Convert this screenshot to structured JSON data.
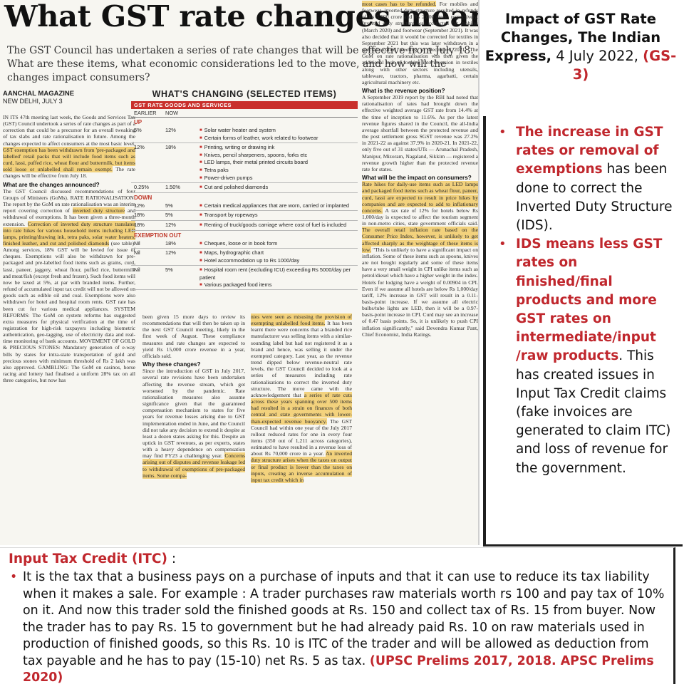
{
  "clipping": {
    "headline": "What GST rate changes mean",
    "standfirst": "The GST Council has undertaken a series of rate changes that will be effective from July 18. What are these items, what economic considerations led to the move, and how will the changes impact consumers?",
    "author": "AANCHAL MAGAZINE",
    "dateline": "NEW DELHI, JULY 3",
    "col1_p1": "IN ITS 47th meeting last week, the Goods and Services Tax (GST) Council undertook a series of rate changes as part of a correction that could be a precursor for an overall tweaking of tax slabs and rate rationalisation in future. Among the changes expected to affect consumers at the most basic level,",
    "col1_hl1": "GST exemption has been withdrawn from 'pre-packaged and labelled' retail packs that will include food items such as curd, lassi, puffed rice, wheat flour and buttermilk, but items sold loose or unlabelled shall remain exempt.",
    "col1_p2": "The rate changes will be effective from July 18.",
    "col1_h1": "What are the changes announced?",
    "col1_p3": "The GST Council discussed recommendations of four Groups of Ministers (GoMs). RATE RATIONALISATION: The report by the GoM on rate rationalisation was an interim report covering correction of",
    "col1_hl2": "inverted duty structure",
    "col1_p4": "and withdrawal of exemptions. It has been given a three-month extension.",
    "col1_hl3": "Correction of inverted duty structure translates into rate hikes for various household items including LED lamps, printing/drawing ink, tetra paks, solar water heaters, finished leather, and cut and polished diamonds",
    "col1_p5": "(see table). Among services, 18% GST will be levied for issue of cheques. Exemptions will also be withdrawn for pre-packaged and pre-labelled food items such as grains, curd, lassi, paneer, jaggery, wheat flour, puffed rice, buttermilk and meat/fish (except fresh and frozen). Such food items will now be taxed at 5%, at par with branded items. Further, refund of accumulated input tax credit will not be allowed on goods such as edible oil and coal. Exemptions were also withdrawn for hotel and hospital room rents. GST rate has been cut for various medical appliances. SYSTEM REFORMS: The GoM on system reforms has suggested extra measures for physical verification at the time of registration for high-risk taxpayers including biometric authentication, geo-tagging, use of electricity data and real-time monitoring of bank accounts. MOVEMENT OF GOLD & PRECIOUS STONES: Mandatory generation of e-way bills by states for intra-state transportation of gold and precious stones with minimum threshold of Rs 2 lakh was also approved. GAMBLING: The GoM on casinos, horse racing and lottery had finalised a uniform 28% tax on all three categories, but now has",
    "col2_p1": "been given 15 more days to review its recommendations that will then be taken up in the next GST Council meeting, likely in the first week of August. These compliance measures and rate changes are expected to yield Rs 15,000 crore revenue in a year, officials said.",
    "col2_h1": "Why these changes?",
    "col2_p2": "Since the introduction of GST in July 2017, several rate revisions have been undertaken affecting the revenue stream, which got worsened by the pandemic. Rate rationalisation measures also assume significance given that the guaranteed compensation mechanism to states for five years for revenue losses arising due to GST implementation ended in June, and the Council did not take any decision to extend it despite at least a dozen states asking for this. Despite an uptick in GST revenues, as per experts, states with a heavy dependence on compensation may find FY23 a challenging year.",
    "col2_hl1": "Concerns arising out of disputes and revenue leakage led to withdrawal of exemptions of pre-packaged items. Some compa-",
    "col3_hl1": "nies were seen as misusing the provision of exempting unlabelled food items.",
    "col3_p1": "It has been learnt there were concerns that a branded rice manufacturer was selling items with a similar-sounding label but had not registered it as a brand and hence, was selling it under the exempted category. Last year, as the revenue trend dipped below revenue-neutral rate levels, the GST Council decided to look at a series of measures including rate rationalisations to correct the inverted duty structure. The move came with the acknowledgement that",
    "col3_hl2": "a series of rate cuts across these years spanning over 500 items had resulted in a strain on finances of both central and state governments with lower-than-expected revenue buoyancy.",
    "col3_p2": "The GST Council had within one year of the July 2017 rollout reduced rates for one in every four items (350 out of 1,211 across categories), estimated to have resulted in a revenue loss of about Rs 70,000 crore in a year.",
    "col3_hl3": "An inverted duty structure arises when the taxes on output or final product is lower than the taxes on inputs, creating an inverse accumulation of input tax credit which in",
    "col4_hl0": "most cases has to be refunded.",
    "col4_p0": "For mobiles and footwear, inverted duty structure resulted in refunds of Rs 5,500 crore and Rs 2,000 crore, respectively. Inverted duty structure was corrected for mobiles (March 2020) and footwear (September 2021). It was also decided that it would be corrected for textiles in September 2021 but this was later withdrawn in a specially-called meeting in December 2021. The GoM on rate rationalisation was then given the additional task of looking into inversion in textiles along with other sectors including utensils, tableware, tractors, pharma, agarbatti, certain agricultural machinery etc.",
    "col4_h1": "What is the revenue position?",
    "col4_p1": "A September 2019 report by the RBI had noted that rationalisation of rates had brought down the effective weighted average GST rate from 14.4% at the time of inception to 11.6%. As per the latest revenue figures shared in the Council, the all-India average shortfall between the protected revenue and the post settlement gross SGST revenue was 27.2% in 2021-22 as against 37.9% in 2020-21. In 2021-22, only five out of 31 states/UTs — Arunachal Pradesh, Manipur, Mizoram, Nagaland, Sikkim — registered a revenue growth higher than the protected revenue rate for states.",
    "col4_h2": "What will be the impact on consumers?",
    "col4_hl1": "Rate hikes for daily-use items such as LED lamps and packaged food items such as wheat flour, paneer, curd, lassi are expected to result in price hikes by companies and are expected to add to inflationary concerns.",
    "col4_p2": "A tax rate of 12% for hotels below Rs 1,000/day is expected to affect the tourism segment in non-metro cities, state government officials said.",
    "col4_hl2": "The overall retail inflation rate based on the Consumer Price Index, however, is unlikely to get affected sharply as the weightage of these items is low.",
    "col4_p3": "\"This is unlikely to have a significant impact on inflation. Some of these items such as spoons, knives are not bought regularly and some of these items have a very small weight in CPI unlike items such as petrol/diesel which have a higher weight in the index. Hotels for lodging have a weight of 0.00904 in CPI. Even if we assume all hotels are below Rs 1,000/day tariff, 12% increase in GST will result in a 0.11-basis-point increase. If we assume all electric bulbs/tube lights are LED, then it will be a 0.97-basis-point increase in CPI. Curd may see an increase of 0.47 basis points. So, it is unlikely to push CPI inflation significantly,\" said Devendra Kumar Pant, Chief Economist, India Ratings."
  },
  "table": {
    "title": "WHAT'S CHANGING (SELECTED ITEMS)",
    "header": "GST RATE          GOODS AND SERVICES",
    "col_earlier": "EARLIER",
    "col_now": "NOW",
    "sections": [
      {
        "label": "UP",
        "rows": [
          {
            "earlier": "5%",
            "now": "12%",
            "items": [
              "Solar water heater and system",
              "Certain forms of leather, work related to footwear"
            ]
          },
          {
            "earlier": "12%",
            "now": "18%",
            "items": [
              "Printing, writing or drawing ink",
              "Knives, pencil sharpeners, spoons, forks etc",
              "LED lamps, their metal printed circuits board",
              "Tetra paks",
              "Power-driven pumps"
            ]
          },
          {
            "earlier": "0.25%",
            "now": "1.50%",
            "items": [
              "Cut and polished diamonds"
            ]
          }
        ]
      },
      {
        "label": "DOWN",
        "rows": [
          {
            "earlier": "12%",
            "now": "5%",
            "items": [
              "Certain medical appliances that are worn, carried or implanted"
            ]
          },
          {
            "earlier": "18%",
            "now": "5%",
            "items": [
              "Transport by ropeways"
            ]
          },
          {
            "earlier": "18%",
            "now": "12%",
            "items": [
              "Renting of truck/goods carriage where cost of fuel is included"
            ]
          }
        ]
      },
      {
        "label": "EXEMPTION OUT",
        "rows": [
          {
            "earlier": "Nil",
            "now": "18%",
            "items": [
              "Cheques, loose or in book form"
            ]
          },
          {
            "earlier": "Nil",
            "now": "12%",
            "items": [
              "Maps, hydrographic chart",
              "Hotel accommodation up to Rs 1000/day"
            ]
          },
          {
            "earlier": "Nil",
            "now": "5%",
            "items": [
              "Hospital room rent (excluding ICU) exceeding Rs 5000/day per patient",
              "Various packaged food items"
            ]
          }
        ]
      }
    ]
  },
  "summary": {
    "title_bold": "Impact of GST Rate Changes, The Indian Express,",
    "title_date": " 4 July 2022, ",
    "title_tag": "(GS-3)",
    "bullet1_red": "The increase in GST rates or removal of exemptions",
    "bullet1_rest": " has been done to correct the Inverted Duty Structure (IDS).",
    "bullet2_red": "IDS means less GST rates on finished/final products and more GST rates on intermediate/input /raw products",
    "bullet2_rest": ". This has created issues in Input Tax Credit claims (fake invoices are generated to claim ITC) and loss of revenue for the government."
  },
  "itc": {
    "heading": "Input Tax Credit (ITC)",
    "heading_suffix": " :",
    "body": "It is the tax that a business pays on a purchase of inputs and that it can use to reduce its tax liability when it makes a sale. For example : A trader purchases raw materials worth rs 100 and pay tax of 10% on it. And now this trader sold the finished goods at Rs. 150 and collect tax of Rs. 15 from buyer. Now the trader has to pay Rs. 15 to government but he had already paid Rs. 10 on raw materials used in production of finished goods, so this Rs. 10 is ITC of the trader and will be allowed as deduction from tax payable and he has to pay (15-10) net Rs. 5 as tax. ",
    "source": "(UPSC Prelims 2017, 2018. APSC Prelims 2020)"
  },
  "colors": {
    "accent_red": "#c0272d",
    "highlight": "#f3d27d",
    "table_red": "#c9302c"
  }
}
